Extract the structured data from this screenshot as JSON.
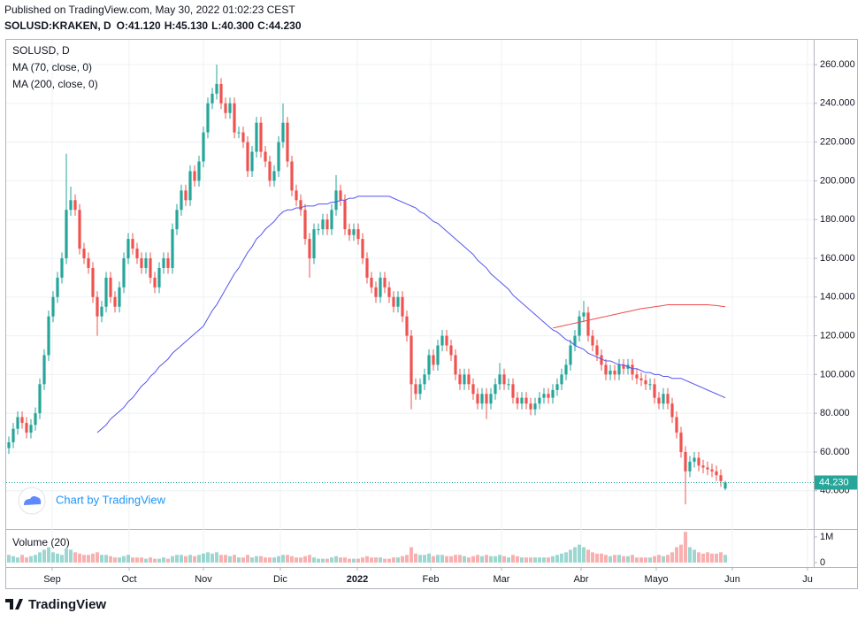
{
  "header": {
    "published": "Published on TradingView.com, May 30, 2022 01:02:23 CEST",
    "symbol": "SOLUSD:KRAKEN, D",
    "ohlc_labels": [
      "O:41.120",
      "H:45.130",
      "L:40.300",
      "C:44.230"
    ]
  },
  "chart_data": [
    {
      "type": "candlestick",
      "title": "SOLUSD, D",
      "up_color": "#26a69a",
      "down_color": "#ef5350",
      "grid": true,
      "xlim": [
        -0.6,
        182
      ],
      "ylim": [
        20.7,
        272.8
      ],
      "xticks": [
        {
          "value": 9.8,
          "label": "Sep"
        },
        {
          "value": 27.2,
          "label": "Oct"
        },
        {
          "value": 44,
          "label": "Nov"
        },
        {
          "value": 61.4,
          "label": "Dic"
        },
        {
          "value": 78.8,
          "label": "2022"
        },
        {
          "value": 95.4,
          "label": "Feb"
        },
        {
          "value": 111.4,
          "label": "Mar"
        },
        {
          "value": 129.4,
          "label": "Abr"
        },
        {
          "value": 146.4,
          "label": "Mayo"
        },
        {
          "value": 163.6,
          "label": "Jun"
        },
        {
          "value": 180.6,
          "label": "Ju"
        }
      ],
      "yticks": [
        {
          "value": 40,
          "label": "40.000"
        },
        {
          "value": 60,
          "label": "60.000"
        },
        {
          "value": 80,
          "label": "80.000"
        },
        {
          "value": 100,
          "label": "100.000"
        },
        {
          "value": 120,
          "label": "120.000"
        },
        {
          "value": 140,
          "label": "140.000"
        },
        {
          "value": 160,
          "label": "160.000"
        },
        {
          "value": 180,
          "label": "180.000"
        },
        {
          "value": 200,
          "label": "200.000"
        },
        {
          "value": 220,
          "label": "220.000"
        },
        {
          "value": 240,
          "label": "240.000"
        },
        {
          "value": 260,
          "label": "260.000"
        }
      ],
      "last_price_label": "44.230",
      "open": [
        62,
        65,
        72,
        78,
        75,
        70,
        74,
        80,
        95,
        110,
        130,
        140,
        150,
        160,
        185,
        190,
        185,
        165,
        160,
        155,
        140,
        130,
        135,
        150,
        140,
        135,
        145,
        160,
        170,
        165,
        160,
        155,
        160,
        150,
        145,
        155,
        160,
        155,
        175,
        185,
        195,
        190,
        205,
        200,
        210,
        225,
        240,
        245,
        250,
        240,
        235,
        240,
        225,
        225,
        220,
        205,
        215,
        230,
        215,
        210,
        200,
        205,
        220,
        230,
        210,
        195,
        190,
        185,
        170,
        160,
        175,
        175,
        180,
        175,
        185,
        195,
        190,
        175,
        172,
        175,
        170,
        160,
        150,
        145,
        140,
        150,
        145,
        140,
        135,
        140,
        130,
        120,
        95,
        90,
        95,
        100,
        110,
        105,
        115,
        120,
        115,
        110,
        100,
        95,
        100,
        95,
        90,
        85,
        90,
        85,
        90,
        95,
        100,
        95,
        95,
        88,
        85,
        88,
        85,
        82,
        85,
        88,
        90,
        88,
        92,
        95,
        100,
        105,
        115,
        120,
        130,
        132,
        120,
        115,
        110,
        105,
        100,
        102,
        100,
        105,
        103,
        105,
        100,
        98,
        97,
        95,
        95,
        88,
        85,
        90,
        85,
        78,
        70,
        60,
        50,
        55,
        57,
        53,
        52,
        51,
        50,
        48,
        41.12
      ],
      "high": [
        68,
        75,
        81,
        81,
        78,
        77,
        83,
        98,
        113,
        133,
        143,
        153,
        163,
        214,
        197,
        193,
        188,
        168,
        163,
        158,
        143,
        138,
        153,
        153,
        143,
        148,
        163,
        173,
        173,
        168,
        163,
        163,
        163,
        153,
        158,
        163,
        163,
        178,
        188,
        198,
        198,
        208,
        208,
        213,
        228,
        243,
        248,
        260,
        253,
        243,
        243,
        243,
        228,
        228,
        223,
        218,
        233,
        233,
        218,
        213,
        208,
        223,
        240,
        233,
        213,
        198,
        193,
        188,
        173,
        178,
        178,
        183,
        183,
        188,
        203,
        198,
        193,
        178,
        178,
        178,
        173,
        163,
        153,
        148,
        153,
        153,
        148,
        143,
        143,
        143,
        133,
        123,
        98,
        98,
        103,
        113,
        113,
        118,
        123,
        123,
        118,
        113,
        103,
        103,
        103,
        98,
        93,
        93,
        93,
        93,
        98,
        106,
        103,
        98,
        98,
        91,
        91,
        91,
        88,
        88,
        91,
        93,
        93,
        95,
        98,
        103,
        108,
        118,
        123,
        133,
        138,
        135,
        123,
        118,
        113,
        108,
        105,
        105,
        108,
        108,
        108,
        108,
        103,
        101,
        100,
        98,
        98,
        91,
        93,
        93,
        88,
        81,
        73,
        63,
        58,
        60,
        60,
        56,
        55,
        54,
        53,
        51,
        45.13
      ],
      "low": [
        59,
        62,
        69,
        72,
        67,
        67,
        71,
        77,
        92,
        107,
        127,
        137,
        147,
        157,
        182,
        182,
        162,
        157,
        152,
        137,
        120,
        127,
        132,
        137,
        132,
        132,
        142,
        157,
        162,
        157,
        152,
        152,
        147,
        142,
        142,
        152,
        152,
        152,
        172,
        182,
        187,
        187,
        197,
        197,
        207,
        222,
        237,
        242,
        237,
        232,
        232,
        222,
        222,
        217,
        202,
        202,
        212,
        212,
        207,
        197,
        197,
        202,
        217,
        207,
        192,
        187,
        182,
        167,
        150,
        157,
        172,
        172,
        172,
        172,
        182,
        187,
        172,
        169,
        169,
        167,
        157,
        147,
        142,
        137,
        137,
        142,
        137,
        132,
        132,
        127,
        117,
        82,
        87,
        87,
        92,
        97,
        102,
        102,
        112,
        112,
        107,
        97,
        92,
        92,
        92,
        87,
        82,
        82,
        77,
        82,
        87,
        92,
        92,
        92,
        85,
        82,
        82,
        82,
        79,
        79,
        82,
        85,
        85,
        85,
        89,
        92,
        97,
        102,
        112,
        117,
        127,
        117,
        112,
        107,
        102,
        97,
        97,
        97,
        97,
        100,
        100,
        97,
        95,
        94,
        92,
        92,
        85,
        82,
        82,
        82,
        75,
        67,
        57,
        33,
        47,
        52,
        50,
        49,
        48,
        47,
        45,
        42,
        40.3
      ],
      "close": [
        65,
        72,
        78,
        75,
        70,
        74,
        80,
        95,
        110,
        130,
        140,
        150,
        160,
        185,
        190,
        185,
        165,
        160,
        155,
        140,
        130,
        135,
        150,
        140,
        135,
        145,
        160,
        170,
        165,
        160,
        155,
        160,
        150,
        145,
        155,
        160,
        155,
        175,
        185,
        195,
        190,
        205,
        200,
        210,
        225,
        240,
        245,
        250,
        240,
        235,
        240,
        225,
        225,
        220,
        205,
        215,
        230,
        215,
        210,
        200,
        205,
        220,
        230,
        210,
        195,
        190,
        185,
        170,
        160,
        175,
        175,
        180,
        175,
        185,
        195,
        190,
        175,
        172,
        175,
        170,
        160,
        150,
        145,
        140,
        150,
        145,
        140,
        135,
        140,
        130,
        120,
        95,
        90,
        95,
        100,
        110,
        105,
        115,
        120,
        115,
        110,
        100,
        95,
        100,
        95,
        90,
        85,
        90,
        85,
        90,
        95,
        100,
        95,
        95,
        88,
        85,
        88,
        85,
        82,
        85,
        88,
        90,
        88,
        92,
        95,
        100,
        105,
        115,
        120,
        130,
        132,
        120,
        115,
        110,
        105,
        100,
        102,
        100,
        105,
        103,
        105,
        100,
        98,
        97,
        95,
        95,
        88,
        85,
        90,
        85,
        78,
        70,
        60,
        50,
        55,
        57,
        53,
        52,
        51,
        50,
        48,
        45,
        44.23
      ],
      "overlays": [
        {
          "name": "MA (70, close, 0)",
          "color": "#5555ee",
          "values": [
            null,
            null,
            null,
            null,
            null,
            null,
            null,
            null,
            null,
            null,
            null,
            null,
            null,
            null,
            null,
            null,
            null,
            null,
            null,
            null,
            70,
            72,
            74,
            77,
            79,
            81,
            83,
            86,
            88,
            91,
            94,
            96,
            99,
            101,
            104,
            106,
            108,
            111,
            113,
            115,
            117,
            119,
            121,
            123,
            125,
            129,
            133,
            136,
            140,
            144,
            148,
            152,
            155,
            159,
            163,
            166,
            170,
            172,
            175,
            177,
            179,
            182,
            184,
            185,
            185,
            186,
            186,
            187,
            187,
            187,
            188,
            188,
            188,
            189,
            189,
            190,
            190,
            191,
            191,
            192,
            192,
            192,
            192,
            192,
            192,
            192,
            192,
            191,
            190,
            189,
            188,
            187,
            186,
            184,
            183,
            181,
            179,
            178,
            176,
            174,
            172,
            170,
            168,
            166,
            164,
            162,
            159,
            157,
            155,
            152,
            150,
            148,
            146,
            144,
            141,
            139,
            137,
            135,
            133,
            131,
            129,
            127,
            125,
            123,
            122,
            120,
            118,
            117,
            115,
            114,
            113,
            111,
            110,
            109,
            108,
            107,
            107,
            106,
            105,
            105,
            104,
            103,
            103,
            102,
            101,
            101,
            100,
            100,
            99,
            99,
            98,
            98,
            98,
            97,
            96,
            95,
            94,
            93,
            92,
            91,
            90,
            89,
            88
          ]
        },
        {
          "name": "MA (200, close, 0)",
          "color": "#f04a4a",
          "values": [
            null,
            null,
            null,
            null,
            null,
            null,
            null,
            null,
            null,
            null,
            null,
            null,
            null,
            null,
            null,
            null,
            null,
            null,
            null,
            null,
            null,
            null,
            null,
            null,
            null,
            null,
            null,
            null,
            null,
            null,
            null,
            null,
            null,
            null,
            null,
            null,
            null,
            null,
            null,
            null,
            null,
            null,
            null,
            null,
            null,
            null,
            null,
            null,
            null,
            null,
            null,
            null,
            null,
            null,
            null,
            null,
            null,
            null,
            null,
            null,
            null,
            null,
            null,
            null,
            null,
            null,
            null,
            null,
            null,
            null,
            null,
            null,
            null,
            null,
            null,
            null,
            null,
            null,
            null,
            null,
            null,
            null,
            null,
            null,
            null,
            null,
            null,
            null,
            null,
            null,
            null,
            null,
            null,
            null,
            null,
            null,
            null,
            null,
            null,
            null,
            null,
            null,
            null,
            null,
            null,
            null,
            null,
            null,
            null,
            null,
            null,
            null,
            null,
            null,
            null,
            null,
            null,
            null,
            null,
            null,
            null,
            null,
            null,
            124,
            124.5,
            125,
            125.5,
            126,
            126.5,
            127,
            127.5,
            128,
            128.5,
            129,
            129.5,
            130,
            130.5,
            131,
            131.5,
            132,
            132.5,
            133,
            133.5,
            134,
            134.3,
            134.6,
            135,
            135.3,
            135.6,
            136,
            136,
            136,
            136,
            136,
            136,
            136,
            136,
            136,
            136,
            135.8,
            135.6,
            135.3,
            135
          ]
        }
      ]
    },
    {
      "type": "volume",
      "title": "Volume (20)",
      "ylim": [
        -0.14,
        1.24
      ],
      "yticks": [
        {
          "value": 1,
          "label": "1M"
        },
        0
      ],
      "values": [
        0.3,
        0.25,
        0.2,
        0.3,
        0.2,
        0.25,
        0.3,
        0.4,
        0.5,
        0.6,
        0.4,
        0.35,
        0.3,
        0.55,
        0.5,
        0.4,
        0.35,
        0.3,
        0.3,
        0.35,
        0.4,
        0.3,
        0.3,
        0.25,
        0.2,
        0.2,
        0.25,
        0.3,
        0.2,
        0.2,
        0.2,
        0.15,
        0.2,
        0.15,
        0.15,
        0.2,
        0.15,
        0.25,
        0.3,
        0.3,
        0.25,
        0.3,
        0.25,
        0.3,
        0.35,
        0.4,
        0.35,
        0.4,
        0.3,
        0.3,
        0.25,
        0.3,
        0.2,
        0.2,
        0.3,
        0.2,
        0.25,
        0.25,
        0.2,
        0.2,
        0.2,
        0.25,
        0.3,
        0.3,
        0.25,
        0.2,
        0.2,
        0.25,
        0.3,
        0.2,
        0.15,
        0.15,
        0.15,
        0.2,
        0.25,
        0.2,
        0.2,
        0.15,
        0.15,
        0.15,
        0.2,
        0.25,
        0.2,
        0.2,
        0.2,
        0.15,
        0.15,
        0.2,
        0.2,
        0.25,
        0.3,
        0.6,
        0.35,
        0.3,
        0.3,
        0.35,
        0.25,
        0.3,
        0.3,
        0.25,
        0.25,
        0.3,
        0.3,
        0.25,
        0.2,
        0.25,
        0.3,
        0.25,
        0.3,
        0.25,
        0.25,
        0.3,
        0.25,
        0.2,
        0.3,
        0.25,
        0.2,
        0.2,
        0.2,
        0.2,
        0.2,
        0.2,
        0.2,
        0.25,
        0.3,
        0.35,
        0.4,
        0.5,
        0.6,
        0.7,
        0.6,
        0.5,
        0.4,
        0.35,
        0.35,
        0.3,
        0.25,
        0.3,
        0.3,
        0.25,
        0.25,
        0.3,
        0.2,
        0.2,
        0.2,
        0.2,
        0.25,
        0.3,
        0.25,
        0.3,
        0.4,
        0.6,
        0.7,
        1.2,
        0.6,
        0.5,
        0.4,
        0.35,
        0.4,
        0.35,
        0.35,
        0.4,
        0.3
      ]
    }
  ],
  "footer": {
    "watermark": "Chart by TradingView",
    "brand": "TradingView"
  }
}
